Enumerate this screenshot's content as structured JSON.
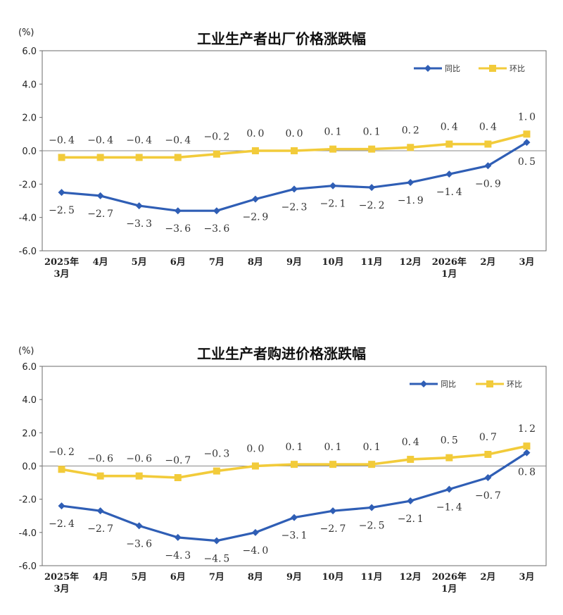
{
  "chart_data": [
    {
      "type": "line",
      "title": "工业生产者出厂价格涨跌幅",
      "unit": "(%)",
      "categories": [
        [
          "2025年",
          "3月"
        ],
        [
          "4月"
        ],
        [
          "5月"
        ],
        [
          "6月"
        ],
        [
          "7月"
        ],
        [
          "8月"
        ],
        [
          "9月"
        ],
        [
          "10月"
        ],
        [
          "11月"
        ],
        [
          "12月"
        ],
        [
          "2026年",
          "1月"
        ],
        [
          "2月"
        ],
        [
          "3月"
        ]
      ],
      "ylim": [
        -6.0,
        6.0
      ],
      "yticks": [
        "6.0",
        "4.0",
        "2.0",
        "0.0",
        "-2.0",
        "-4.0",
        "-6.0"
      ],
      "legend_position": "top-right",
      "series": [
        {
          "name": "同比",
          "color": "#2f5eb5",
          "marker": "diamond",
          "values": [
            -2.5,
            -2.7,
            -3.3,
            -3.6,
            -3.6,
            -2.9,
            -2.3,
            -2.1,
            -2.2,
            -1.9,
            -1.4,
            -0.9,
            0.5
          ],
          "labels": [
            "-2.5",
            "-2.7",
            "-3.3",
            "-3.6",
            "-3.6",
            "-2.9",
            "-2.3",
            "-2.1",
            "-2.2",
            "-1.9",
            "-1.4",
            "-0.9",
            "0.5"
          ]
        },
        {
          "name": "环比",
          "color": "#f2cb3a",
          "marker": "square",
          "values": [
            -0.4,
            -0.4,
            -0.4,
            -0.4,
            -0.2,
            0.0,
            0.0,
            0.1,
            0.1,
            0.2,
            0.4,
            0.4,
            1.0
          ],
          "labels": [
            "-0.4",
            "-0.4",
            "-0.4",
            "-0.4",
            "-0.2",
            "0.0",
            "0.0",
            "0.1",
            "0.1",
            "0.2",
            "0.4",
            "0.4",
            "1.0"
          ]
        }
      ]
    },
    {
      "type": "line",
      "title": "工业生产者购进价格涨跌幅",
      "unit": "(%)",
      "categories": [
        [
          "2025年",
          "3月"
        ],
        [
          "4月"
        ],
        [
          "5月"
        ],
        [
          "6月"
        ],
        [
          "7月"
        ],
        [
          "8月"
        ],
        [
          "9月"
        ],
        [
          "10月"
        ],
        [
          "11月"
        ],
        [
          "12月"
        ],
        [
          "2026年",
          "1月"
        ],
        [
          "2月"
        ],
        [
          "3月"
        ]
      ],
      "ylim": [
        -6.0,
        6.0
      ],
      "yticks": [
        "6.0",
        "4.0",
        "2.0",
        "0.0",
        "-2.0",
        "-4.0",
        "-6.0"
      ],
      "legend_position": "top-right",
      "series": [
        {
          "name": "同比",
          "color": "#2f5eb5",
          "marker": "diamond",
          "values": [
            -2.4,
            -2.7,
            -3.6,
            -4.3,
            -4.5,
            -4.0,
            -3.1,
            -2.7,
            -2.5,
            -2.1,
            -1.4,
            -0.7,
            0.8
          ],
          "labels": [
            "-2.4",
            "-2.7",
            "-3.6",
            "-4.3",
            "-4.5",
            "-4.0",
            "-3.1",
            "-2.7",
            "-2.5",
            "-2.1",
            "-1.4",
            "-0.7",
            "0.8"
          ]
        },
        {
          "name": "环比",
          "color": "#f2cb3a",
          "marker": "square",
          "values": [
            -0.2,
            -0.6,
            -0.6,
            -0.7,
            -0.3,
            0.0,
            0.1,
            0.1,
            0.1,
            0.4,
            0.5,
            0.7,
            1.2
          ],
          "labels": [
            "-0.2",
            "-0.6",
            "-0.6",
            "-0.7",
            "-0.3",
            "0.0",
            "0.1",
            "0.1",
            "0.1",
            "0.4",
            "0.5",
            "0.7",
            "1.2"
          ]
        }
      ]
    }
  ]
}
